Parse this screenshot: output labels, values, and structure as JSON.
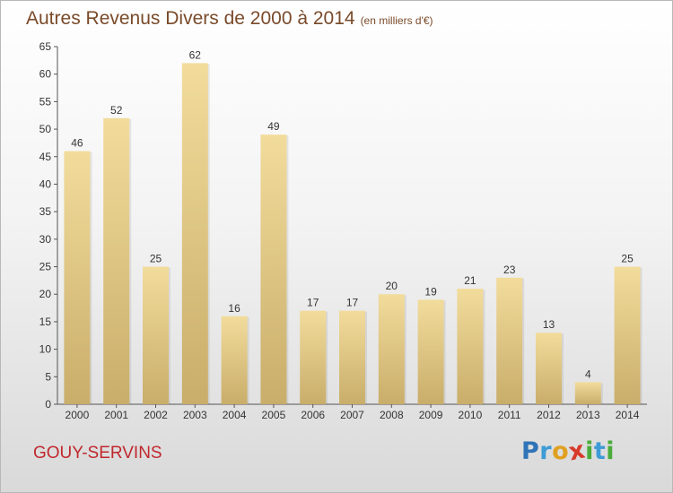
{
  "title": "Autres Revenus Divers de 2000 à 2014",
  "title_unit": "(en milliers d'€)",
  "commune": "GOUY-SERVINS",
  "logo": {
    "letters": [
      "P",
      "r",
      "o",
      "x",
      "i",
      "t",
      "i"
    ],
    "colors": [
      "#2f73b8",
      "#3d9bd6",
      "#e0a020",
      "#d83a2a",
      "#4aab3a",
      "#3d9bd6",
      "#4aab3a"
    ]
  },
  "colors": {
    "bar_top": "#f2dc9c",
    "bar_bottom": "#c9ad6a",
    "title": "#7a4a2a",
    "commune": "#c0282e"
  },
  "chart_data": {
    "type": "bar",
    "categories": [
      "2000",
      "2001",
      "2002",
      "2003",
      "2004",
      "2005",
      "2006",
      "2007",
      "2008",
      "2009",
      "2010",
      "2011",
      "2012",
      "2013",
      "2014"
    ],
    "values": [
      46,
      52,
      25,
      62,
      16,
      49,
      17,
      17,
      20,
      19,
      21,
      23,
      13,
      4,
      25
    ],
    "ylim": [
      0,
      65
    ],
    "yticks": [
      0,
      5,
      10,
      15,
      20,
      25,
      30,
      35,
      40,
      45,
      50,
      55,
      60,
      65
    ],
    "grid": false,
    "legend": "none"
  }
}
